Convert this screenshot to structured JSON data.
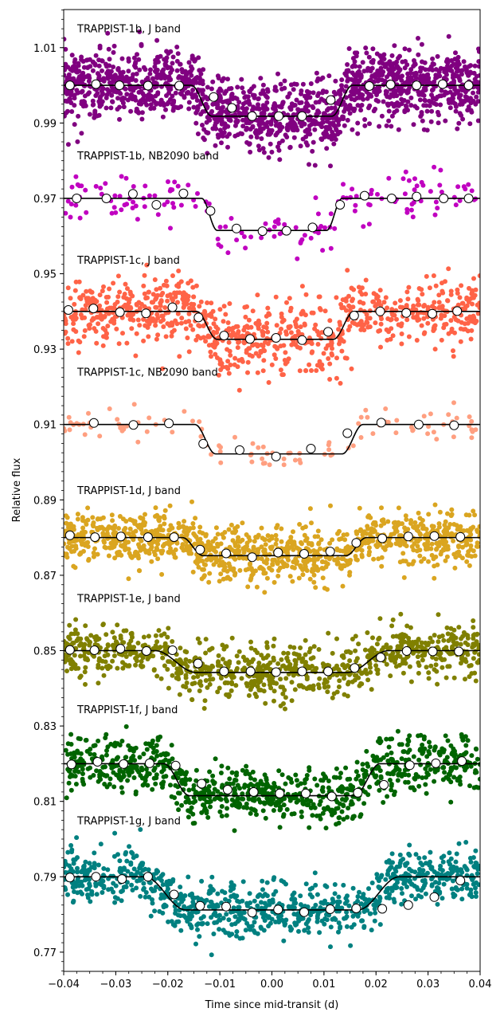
{
  "chart_data": {
    "type": "scatter",
    "title": "",
    "xlabel": "Time since mid-transit (d)",
    "ylabel": "Relative flux",
    "xlim": [
      -0.04,
      0.04
    ],
    "ylim": [
      0.7649,
      1.0201
    ],
    "x_ticks": [
      -0.04,
      -0.03,
      -0.02,
      -0.01,
      0.0,
      0.01,
      0.02,
      0.03,
      0.04
    ],
    "x_tick_labels": [
      "−0.04",
      "−0.03",
      "−0.02",
      "−0.01",
      "0.00",
      "0.01",
      "0.02",
      "0.03",
      "0.04"
    ],
    "y_ticks": [
      0.77,
      0.79,
      0.81,
      0.83,
      0.85,
      0.87,
      0.89,
      0.91,
      0.93,
      0.95,
      0.97,
      0.99,
      1.01
    ],
    "y_tick_labels": [
      "0.77",
      "0.79",
      "0.81",
      "0.83",
      "0.85",
      "0.87",
      "0.89",
      "0.91",
      "0.93",
      "0.95",
      "0.97",
      "0.99",
      "1.01"
    ],
    "grid": false,
    "legend": "none",
    "series": [
      {
        "name": "TRAPPIST-1b, J band",
        "color": "#800080",
        "baseline": 1.0,
        "depth": 0.0082,
        "ingress_start": -0.0155,
        "ingress_end": -0.0115,
        "egress_start": 0.0115,
        "egress_end": 0.0155,
        "scatter": 0.0045,
        "binned": {
          "x": [
            -0.0388,
            -0.0338,
            -0.0293,
            -0.0238,
            -0.0178,
            -0.0112,
            -0.0077,
            -0.0038,
            0.0013,
            0.0058,
            0.0113,
            0.0187,
            0.0228,
            0.0278,
            0.0328,
            0.0378
          ],
          "y": [
            1.0,
            1.0003,
            1.0,
            0.9999,
            0.9999,
            0.9969,
            0.994,
            0.9918,
            0.9918,
            0.9918,
            0.9961,
            0.9998,
            1.0002,
            1.0,
            1.0003,
            1.0
          ]
        }
      },
      {
        "name": "TRAPPIST-1b, NB2090 band",
        "color": "#c000c0",
        "baseline": 0.97,
        "depth": 0.0085,
        "ingress_start": -0.0135,
        "ingress_end": -0.0105,
        "egress_start": 0.0105,
        "egress_end": 0.0135,
        "scatter": 0.0032,
        "binned": {
          "x": [
            -0.0375,
            -0.0318,
            -0.0267,
            -0.0222,
            -0.017,
            -0.0118,
            -0.0068,
            -0.0018,
            0.0028,
            0.0078,
            0.0131,
            0.0178,
            0.023,
            0.0278,
            0.033,
            0.0378
          ],
          "y": [
            0.97,
            0.97,
            0.9712,
            0.9683,
            0.9713,
            0.9667,
            0.962,
            0.9613,
            0.9614,
            0.9623,
            0.9683,
            0.9707,
            0.97,
            0.9705,
            0.97,
            0.97
          ]
        }
      },
      {
        "name": "TRAPPIST-1c, J band",
        "color": "#ff6347",
        "baseline": 0.94,
        "depth": 0.0074,
        "ingress_start": -0.0145,
        "ingress_end": -0.0105,
        "egress_start": 0.0118,
        "egress_end": 0.0158,
        "scatter": 0.0045,
        "binned": {
          "x": [
            -0.0391,
            -0.0343,
            -0.0292,
            -0.0242,
            -0.0191,
            -0.0141,
            -0.0092,
            -0.0042,
            0.0008,
            0.0058,
            0.0108,
            0.0158,
            0.0208,
            0.0258,
            0.0308,
            0.0356
          ],
          "y": [
            0.9404,
            0.9408,
            0.9398,
            0.9395,
            0.9411,
            0.9384,
            0.9336,
            0.9327,
            0.933,
            0.9324,
            0.9346,
            0.9389,
            0.94,
            0.9396,
            0.9394,
            0.9401
          ]
        }
      },
      {
        "name": "TRAPPIST-1c, NB2090 band",
        "color": "#ff9f80",
        "baseline": 0.91,
        "depth": 0.0078,
        "ingress_start": -0.0148,
        "ingress_end": -0.0108,
        "egress_start": 0.0135,
        "egress_end": 0.0175,
        "scatter": 0.0022,
        "binned": {
          "x": [
            -0.0342,
            -0.0266,
            -0.0198,
            -0.0132,
            -0.0062,
            0.0008,
            0.0075,
            0.0145,
            0.021,
            0.0282,
            0.035
          ],
          "y": [
            0.9104,
            0.9099,
            0.9103,
            0.9049,
            0.9032,
            0.9015,
            0.9036,
            0.9077,
            0.9105,
            0.91,
            0.9098
          ]
        }
      },
      {
        "name": "TRAPPIST-1d, J band",
        "color": "#daa520",
        "baseline": 0.88,
        "depth": 0.0048,
        "ingress_start": -0.0172,
        "ingress_end": -0.0132,
        "egress_start": 0.0142,
        "egress_end": 0.0182,
        "scatter": 0.0035,
        "binned": {
          "x": [
            -0.0388,
            -0.034,
            -0.029,
            -0.0238,
            -0.0188,
            -0.0138,
            -0.0088,
            -0.0038,
            0.0012,
            0.0062,
            0.0112,
            0.0162,
            0.0212,
            0.0262,
            0.0312,
            0.0362
          ],
          "y": [
            0.8806,
            0.8801,
            0.8803,
            0.8801,
            0.8801,
            0.8768,
            0.8758,
            0.8748,
            0.876,
            0.8757,
            0.8763,
            0.8786,
            0.8798,
            0.8803,
            0.8804,
            0.8802
          ]
        }
      },
      {
        "name": "TRAPPIST-1e, J band",
        "color": "#808000",
        "baseline": 0.85,
        "depth": 0.0058,
        "ingress_start": -0.0225,
        "ingress_end": -0.0145,
        "egress_start": 0.0145,
        "egress_end": 0.0225,
        "scatter": 0.0035,
        "binned": {
          "x": [
            -0.0388,
            -0.0341,
            -0.0291,
            -0.0241,
            -0.0191,
            -0.0142,
            -0.0092,
            -0.0041,
            0.0008,
            0.0058,
            0.0108,
            0.0159,
            0.0209,
            0.0259,
            0.0309,
            0.0359
          ],
          "y": [
            0.8502,
            0.8501,
            0.8505,
            0.8499,
            0.8501,
            0.8466,
            0.8445,
            0.8445,
            0.8443,
            0.8445,
            0.8445,
            0.8454,
            0.8482,
            0.8499,
            0.8498,
            0.8498
          ]
        }
      },
      {
        "name": "TRAPPIST-1f, J band",
        "color": "#006400",
        "baseline": 0.82,
        "depth": 0.0085,
        "ingress_start": -0.0208,
        "ingress_end": -0.0158,
        "egress_start": 0.0158,
        "egress_end": 0.0208,
        "scatter": 0.0035,
        "binned": {
          "x": [
            -0.0385,
            -0.0335,
            -0.0285,
            -0.0235,
            -0.0185,
            -0.0135,
            -0.0085,
            -0.0035,
            0.0015,
            0.0065,
            0.0115,
            0.0165,
            0.0215,
            0.0265,
            0.0315,
            0.0365
          ],
          "y": [
            0.8198,
            0.8205,
            0.8199,
            0.8201,
            0.8195,
            0.8147,
            0.8131,
            0.8125,
            0.8121,
            0.8121,
            0.8113,
            0.8123,
            0.8144,
            0.8196,
            0.8201,
            0.8207
          ]
        }
      },
      {
        "name": "TRAPPIST-1g, J band",
        "color": "#008080",
        "baseline": 0.79,
        "depth": 0.0088,
        "ingress_start": -0.0245,
        "ingress_end": -0.0165,
        "egress_start": 0.0165,
        "egress_end": 0.0245,
        "scatter": 0.0035,
        "binned": {
          "x": [
            -0.0388,
            -0.0338,
            -0.0288,
            -0.0238,
            -0.0188,
            -0.0138,
            -0.0088,
            -0.0038,
            0.0012,
            0.0062,
            0.0112,
            0.0162,
            0.0212,
            0.0262,
            0.0312,
            0.0362
          ],
          "y": [
            0.7898,
            0.79,
            0.7894,
            0.79,
            0.7853,
            0.7823,
            0.7821,
            0.7805,
            0.7813,
            0.7806,
            0.7814,
            0.7816,
            0.7815,
            0.7825,
            0.7846,
            0.789
          ]
        }
      }
    ]
  }
}
